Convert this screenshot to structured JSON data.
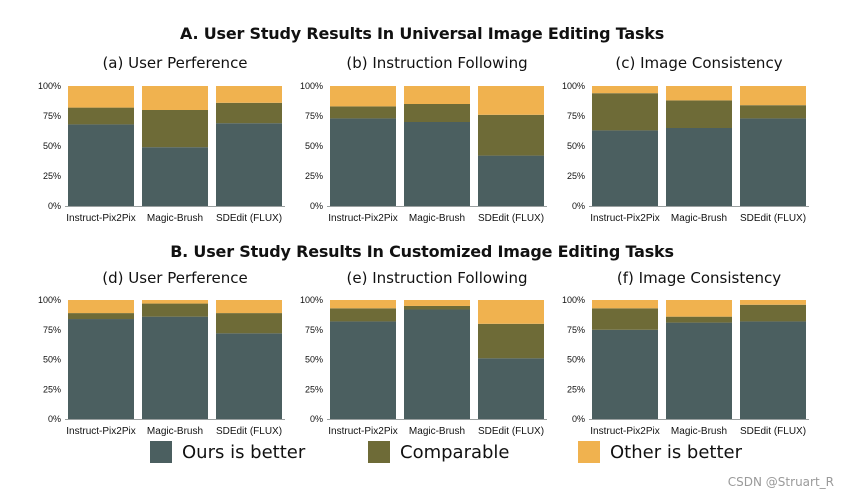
{
  "titles": {
    "a": "A. User Study Results In Universal Image Editing Tasks",
    "b": "B. User Study Results In Customized Image Editing Tasks"
  },
  "legend": [
    {
      "label": "Ours is better",
      "color": "#4b5f60"
    },
    {
      "label": "Comparable",
      "color": "#6e6b37"
    },
    {
      "label": "Other is better",
      "color": "#f0b24f"
    }
  ],
  "watermark": "CSDN @Struart_R",
  "chart_data": [
    {
      "type": "bar",
      "stacked": true,
      "title": "(a) User Perference",
      "categories": [
        "Instruct-Pix2Pix",
        "Magic-Brush",
        "SDEdit (FLUX)"
      ],
      "yticks": [
        "0%",
        "25%",
        "50%",
        "75%",
        "100%"
      ],
      "ylim": [
        0,
        100
      ],
      "series": [
        {
          "name": "Ours is better",
          "values": [
            68,
            49,
            69
          ]
        },
        {
          "name": "Comparable",
          "values": [
            14,
            31,
            17
          ]
        },
        {
          "name": "Other is better",
          "values": [
            18,
            20,
            14
          ]
        }
      ]
    },
    {
      "type": "bar",
      "stacked": true,
      "title": "(b) Instruction Following",
      "categories": [
        "Instruct-Pix2Pix",
        "Magic-Brush",
        "SDEdit (FLUX)"
      ],
      "yticks": [
        "0%",
        "25%",
        "50%",
        "75%",
        "100%"
      ],
      "ylim": [
        0,
        100
      ],
      "series": [
        {
          "name": "Ours is better",
          "values": [
            73,
            70,
            42
          ]
        },
        {
          "name": "Comparable",
          "values": [
            10,
            15,
            34
          ]
        },
        {
          "name": "Other is better",
          "values": [
            17,
            15,
            24
          ]
        }
      ]
    },
    {
      "type": "bar",
      "stacked": true,
      "title": "(c) Image Consistency",
      "categories": [
        "Instruct-Pix2Pix",
        "Magic-Brush",
        "SDEdit (FLUX)"
      ],
      "yticks": [
        "0%",
        "25%",
        "50%",
        "75%",
        "100%"
      ],
      "ylim": [
        0,
        100
      ],
      "series": [
        {
          "name": "Ours is better",
          "values": [
            63,
            65,
            73
          ]
        },
        {
          "name": "Comparable",
          "values": [
            31,
            23,
            11
          ]
        },
        {
          "name": "Other is better",
          "values": [
            6,
            12,
            16
          ]
        }
      ]
    },
    {
      "type": "bar",
      "stacked": true,
      "title": "(d) User Perference",
      "categories": [
        "Instruct-Pix2Pix",
        "Magic-Brush",
        "SDEdit (FLUX)"
      ],
      "yticks": [
        "0%",
        "25%",
        "50%",
        "75%",
        "100%"
      ],
      "ylim": [
        0,
        100
      ],
      "series": [
        {
          "name": "Ours is better",
          "values": [
            84,
            86,
            72
          ]
        },
        {
          "name": "Comparable",
          "values": [
            5,
            11,
            17
          ]
        },
        {
          "name": "Other is better",
          "values": [
            11,
            3,
            11
          ]
        }
      ]
    },
    {
      "type": "bar",
      "stacked": true,
      "title": "(e) Instruction Following",
      "categories": [
        "Instruct-Pix2Pix",
        "Magic-Brush",
        "SDEdit (FLUX)"
      ],
      "yticks": [
        "0%",
        "25%",
        "50%",
        "75%",
        "100%"
      ],
      "ylim": [
        0,
        100
      ],
      "series": [
        {
          "name": "Ours is better",
          "values": [
            82,
            92,
            51
          ]
        },
        {
          "name": "Comparable",
          "values": [
            11,
            3,
            29
          ]
        },
        {
          "name": "Other is better",
          "values": [
            7,
            5,
            20
          ]
        }
      ]
    },
    {
      "type": "bar",
      "stacked": true,
      "title": "(f) Image Consistency",
      "categories": [
        "Instruct-Pix2Pix",
        "Magic-Brush",
        "SDEdit (FLUX)"
      ],
      "yticks": [
        "0%",
        "25%",
        "50%",
        "75%",
        "100%"
      ],
      "ylim": [
        0,
        100
      ],
      "series": [
        {
          "name": "Ours is better",
          "values": [
            75,
            81,
            82
          ]
        },
        {
          "name": "Comparable",
          "values": [
            18,
            5,
            14
          ]
        },
        {
          "name": "Other is better",
          "values": [
            7,
            14,
            4
          ]
        }
      ]
    }
  ]
}
